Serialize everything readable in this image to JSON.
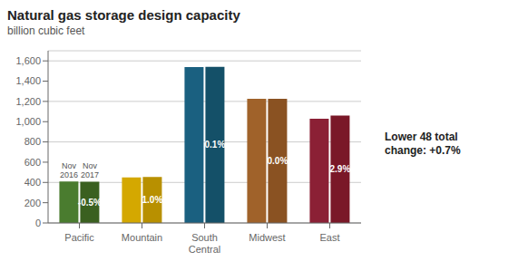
{
  "chart_data": {
    "type": "bar",
    "title": "Natural gas storage design capacity",
    "subtitle": "billion cubic feet",
    "categories": [
      "Pacific",
      "Mountain",
      "South\nCentral",
      "Midwest",
      "East"
    ],
    "series": [
      {
        "name": "Nov\n2016",
        "colors": [
          "#4a7c2f",
          "#d4a800",
          "#1a6080",
          "#a0622a",
          "#8b2035"
        ],
        "values": [
          410,
          450,
          1540,
          1225,
          1030
        ]
      },
      {
        "name": "Nov\n2017",
        "colors": [
          "#3a6020",
          "#b89000",
          "#145068",
          "#8a5222",
          "#7a1828"
        ],
        "values": [
          408,
          455,
          1542,
          1225,
          1060
        ],
        "change_labels": [
          "-0.5%",
          "1.0%",
          "0.1%",
          "0.0%",
          "2.9%"
        ]
      }
    ],
    "ylim": [
      0,
      1700
    ],
    "yticks": [
      0,
      200,
      400,
      600,
      800,
      {
        "value": 1000,
        "label": "1,000"
      },
      {
        "value": 1200,
        "label": "1,200"
      },
      {
        "value": 1400,
        "label": "1,400"
      },
      {
        "value": 1600,
        "label": "1,600"
      }
    ],
    "grid": true,
    "annotations": [
      "Lower 48 total\nchange: +0.7%"
    ]
  }
}
